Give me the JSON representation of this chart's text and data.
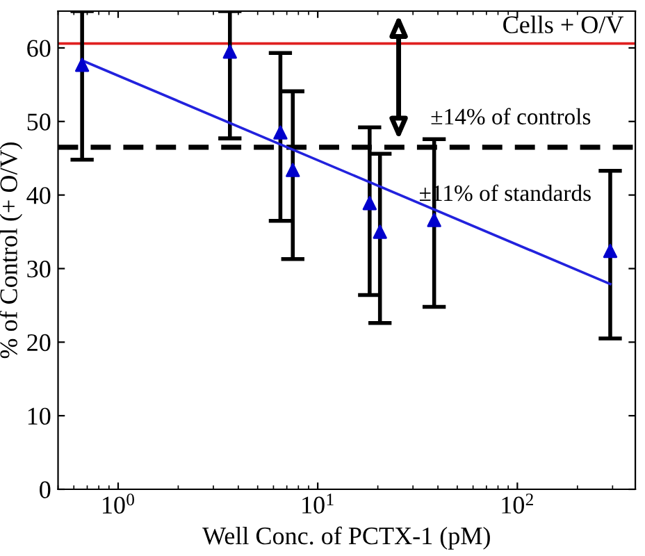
{
  "chart_data": {
    "type": "scatter",
    "xlabel": "Well Conc. of PCTX-1 (pM)",
    "ylabel": "% of Control (+ O/V)",
    "log": "x",
    "xlim": [
      0.5,
      390
    ],
    "xticks": [
      {
        "value": 1,
        "label": "10$^{0}$"
      },
      {
        "value": 10,
        "label": "10$^{1}$"
      },
      {
        "value": 100,
        "label": "10$^{2}$"
      }
    ],
    "ylim": [
      0,
      65
    ],
    "yticks": [
      0,
      10,
      20,
      30,
      40,
      50,
      60
    ],
    "grid": false,
    "series": [
      {
        "color": "#0000cc",
        "marker": "triangle",
        "x": [
          0.66,
          3.63,
          6.5,
          7.5,
          18.2,
          20.5,
          38.3,
          292
        ],
        "values": [
          57.7,
          59.5,
          48.5,
          43.4,
          38.9,
          35.0,
          36.6,
          32.4
        ],
        "errors": [
          [
            44.8,
            65
          ],
          [
            47.7,
            65
          ],
          [
            36.5,
            59.3
          ],
          [
            31.3,
            54.1
          ],
          [
            26.4,
            49.2
          ],
          [
            22.6,
            45.6
          ],
          [
            24.8,
            47.6
          ],
          [
            20.5,
            43.3
          ]
        ]
      },
      {
        "type": "line",
        "color": "#2222dd",
        "marker": "none",
        "line_style": "solid",
        "x": [
          0.66,
          292
        ],
        "values": [
          58.3,
          27.9
        ]
      }
    ],
    "ref_lines": [
      {
        "axis": "y",
        "value": 60.6,
        "label": "Cells + O/V",
        "color": "#e02020",
        "line_style": "solid"
      },
      {
        "axis": "y",
        "value": 46.5,
        "color": "#000000",
        "line_style": "dashed"
      }
    ],
    "annotations": [
      "±14% of controls",
      "±11% of standards"
    ]
  }
}
